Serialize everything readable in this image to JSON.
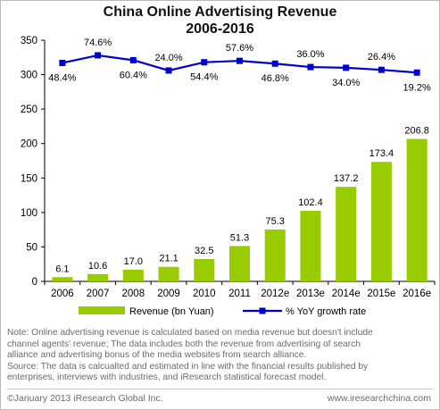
{
  "chart_data": {
    "type": "bar+line",
    "title_line1": "China Online Advertising Revenue",
    "title_line2": "2006-2016",
    "categories": [
      "2006",
      "2007",
      "2008",
      "2009",
      "2010",
      "2011",
      "2012e",
      "2013e",
      "2014e",
      "2015e",
      "2016e"
    ],
    "ylim": [
      0,
      350
    ],
    "yticks": [
      "0",
      "50",
      "100",
      "150",
      "200",
      "250",
      "300",
      "350"
    ],
    "series": [
      {
        "name": "Revenue (bn Yuan)",
        "type": "bar",
        "color": "#99cc00",
        "values": [
          6.1,
          10.6,
          17.0,
          21.1,
          32.5,
          51.3,
          75.3,
          102.4,
          137.2,
          173.4,
          206.8
        ],
        "labels": [
          "6.1",
          "10.6",
          "17.0",
          "21.1",
          "32.5",
          "51.3",
          "75.3",
          "102.4",
          "137.2",
          "173.4",
          "206.8"
        ]
      },
      {
        "name": "% YoY growth rate",
        "type": "line",
        "color": "#0000cc",
        "plot_values": [
          317,
          328,
          321,
          306,
          318,
          320,
          316,
          311,
          310,
          307,
          303
        ],
        "labels": [
          "48.4%",
          "74.6%",
          "60.4%",
          "24.0%",
          "54.4%",
          "57.6%",
          "46.8%",
          "36.0%",
          "34.0%",
          "26.4%",
          "19.2%"
        ]
      }
    ],
    "legend_position": "bottom",
    "grid": false
  },
  "notes": {
    "line1": "Note: Online advertising revenue is calculated based on media revenue but doesn't include",
    "line2": "channel agents' revenue; The data includes both the revenue from advertising of search",
    "line3": "alliance and advertising bonus of the media websites from search alliance.",
    "line4": "Source: The data is calcualted and estimated in line with the financial results published by",
    "line5": "enterprises, interviews with industries, and iResearch statistical forecast model."
  },
  "footer": {
    "copyright": "©January 2013 iResearch Global Inc.",
    "website": "www.iresearchchina.com"
  }
}
